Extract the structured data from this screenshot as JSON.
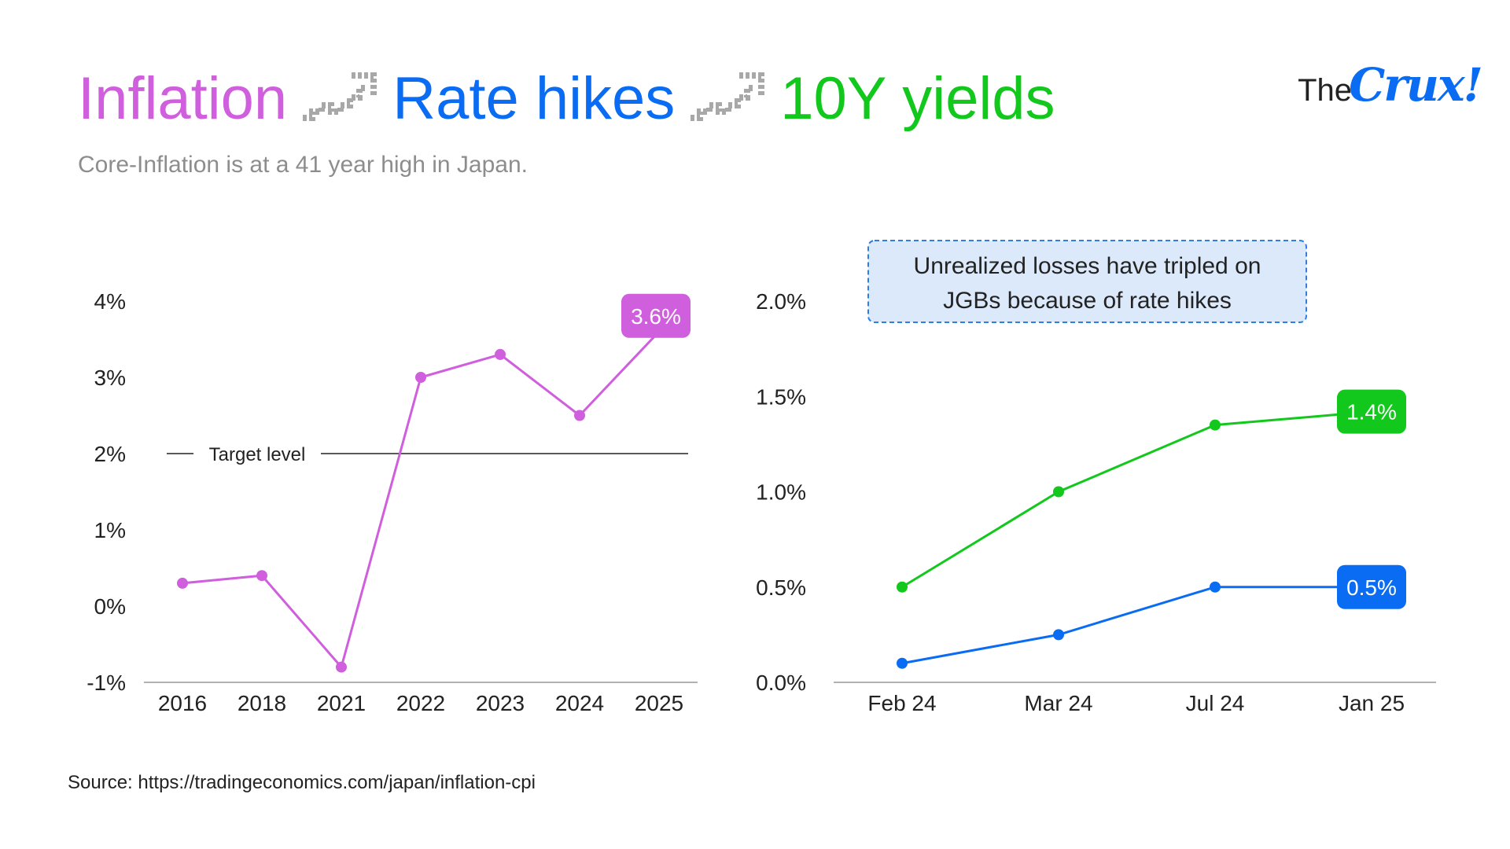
{
  "headline": {
    "word1": "Inflation",
    "word2": "Rate hikes",
    "word3": "10Y yields",
    "arrow_icon": "trending-up-arrow-icon"
  },
  "subtitle": "Core-Inflation is at a 41 year high in Japan.",
  "logo": {
    "prefix": "The",
    "name": "Crux!"
  },
  "source": "Source: https://tradingeconomics.com/japan/inflation-cpi",
  "colors": {
    "inflation": "#cf5fdc",
    "rate": "#0a6cf2",
    "yield": "#12c81c",
    "callout_fill": "#dce9fb",
    "callout_border": "#2f7fe0"
  },
  "chart_data": [
    {
      "type": "line",
      "categories": [
        "2016",
        "2018",
        "2021",
        "2022",
        "2023",
        "2024",
        "2025"
      ],
      "series": [
        {
          "values": [
            0.3,
            0.4,
            -0.8,
            3.0,
            3.3,
            2.5,
            3.6
          ],
          "color": "#cf5fdc"
        }
      ],
      "ylim": [
        -1,
        4
      ],
      "yticks": [
        -1,
        0,
        1,
        2,
        3,
        4
      ],
      "ytick_labels": [
        "-1%",
        "0%",
        "1%",
        "2%",
        "3%",
        "4%"
      ],
      "reference_line": {
        "value": 2,
        "label": "Target level"
      },
      "end_label": "3.6%",
      "grid": false
    },
    {
      "type": "line",
      "categories": [
        "Feb 24",
        "Mar 24",
        "Jul 24",
        "Jan 25"
      ],
      "series": [
        {
          "values": [
            0.5,
            1.0,
            1.35,
            1.42
          ],
          "color": "#12c81c",
          "end_label": "1.4%"
        },
        {
          "values": [
            0.1,
            0.25,
            0.5,
            0.5
          ],
          "color": "#0a6cf2",
          "end_label": "0.5%"
        }
      ],
      "ylim": [
        0,
        2
      ],
      "yticks": [
        0,
        0.5,
        1.0,
        1.5,
        2.0
      ],
      "ytick_labels": [
        "0.0%",
        "0.5%",
        "1.0%",
        "1.5%",
        "2.0%"
      ],
      "annotation": [
        "Unrealized losses have tripled on",
        "JGBs because of rate hikes"
      ],
      "grid": false
    }
  ]
}
